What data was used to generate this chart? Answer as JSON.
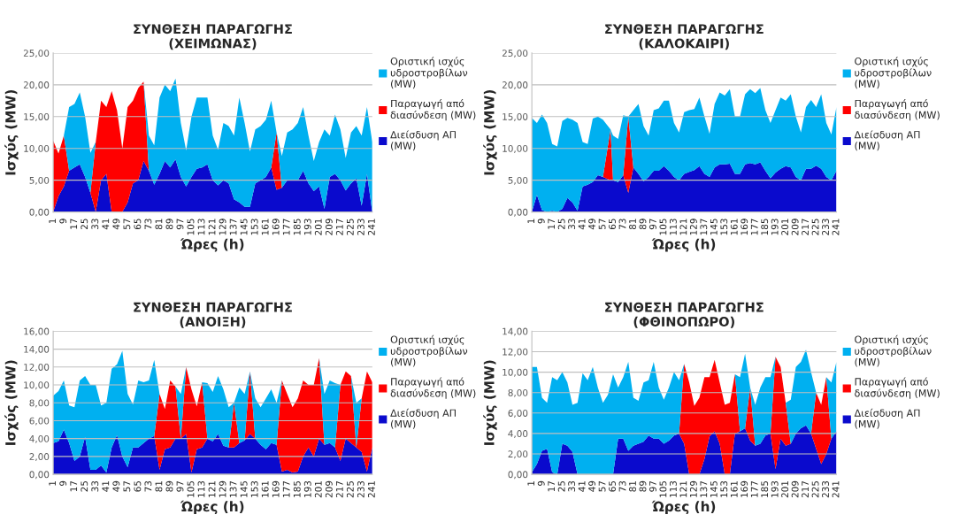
{
  "chart_data": [
    {
      "type": "area",
      "stacked": true,
      "title": "ΣΥΝΘΕΣΗ ΠΑΡΑΓΩΓΗΣ\n(ΧΕΙΜΩΝΑΣ)",
      "xlabel": "Ώρες (h)",
      "ylabel": "Ισχύς (MW)",
      "legend": "right",
      "grid": "y",
      "x": [
        1,
        5,
        9,
        13,
        17,
        21,
        25,
        29,
        33,
        37,
        41,
        45,
        49,
        53,
        57,
        61,
        65,
        69,
        73,
        77,
        81,
        85,
        89,
        93,
        97,
        101,
        105,
        109,
        113,
        117,
        121,
        125,
        129,
        133,
        137,
        141,
        145,
        149,
        153,
        157,
        161,
        165,
        169,
        173,
        177,
        181,
        185,
        189,
        193,
        197,
        201,
        205,
        209,
        213,
        217,
        221,
        225,
        229,
        233,
        237,
        241
      ],
      "xlim": [
        1,
        241
      ],
      "xticks": [
        1,
        9,
        17,
        25,
        33,
        41,
        49,
        57,
        65,
        73,
        81,
        89,
        97,
        105,
        113,
        121,
        129,
        137,
        145,
        153,
        161,
        169,
        177,
        185,
        193,
        201,
        209,
        217,
        225,
        233,
        241
      ],
      "ylim": [
        0,
        25
      ],
      "yticks": [
        {
          "value": 0,
          "label": "0,00"
        },
        {
          "value": 5,
          "label": "5,00"
        },
        {
          "value": 10,
          "label": "10,00"
        },
        {
          "value": 15,
          "label": "15,00"
        },
        {
          "value": 20,
          "label": "20,00"
        },
        {
          "value": 25,
          "label": "25,00"
        }
      ],
      "series": [
        {
          "name": "Διείσδυση ΑΠ\n(MW)",
          "color": "#0a0acd",
          "values": [
            0,
            2.5,
            4,
            6.5,
            7,
            7.5,
            5.5,
            3,
            0,
            5,
            6,
            0,
            0,
            0,
            1.5,
            4.5,
            5,
            8,
            6.5,
            4.3,
            6,
            8,
            7,
            8.3,
            5.5,
            4,
            5.5,
            6.8,
            7,
            7.5,
            5,
            4.2,
            5,
            4.5,
            2,
            1.5,
            0.8,
            0.8,
            4.5,
            5,
            5.5,
            7,
            3.5,
            3.8,
            5,
            5,
            5,
            6.5,
            4.5,
            3.3,
            4,
            0.5,
            5.5,
            6,
            5,
            3.4,
            4.5,
            5.3,
            1,
            6,
            0
          ]
        },
        {
          "name": "Παραγωγή από\nδιασύνδεση (MW)",
          "color": "#ff0000",
          "values": [
            11.2,
            6.7,
            8,
            0,
            0,
            0,
            0,
            0,
            11,
            12.5,
            10.5,
            19,
            16,
            10,
            15,
            13,
            14.5,
            12.5,
            0,
            0,
            0,
            0,
            0,
            0,
            0,
            0,
            0,
            0,
            0,
            0,
            0,
            0,
            0,
            0,
            0,
            0,
            0,
            0,
            0,
            0,
            0,
            0,
            9,
            0,
            0,
            0,
            0,
            0,
            0,
            0,
            0,
            0,
            0,
            0,
            0,
            0,
            0,
            0,
            0,
            0,
            0
          ]
        },
        {
          "name": "Οριστική ισχύς\nυδροστροβίλων\n(MW)",
          "color": "#00b0f0",
          "values": [
            0,
            0,
            0,
            10,
            10,
            11.3,
            9.5,
            6.3,
            0,
            0,
            0,
            0,
            0,
            0,
            0,
            0,
            0,
            0,
            5.5,
            6.2,
            12,
            12,
            12,
            12.7,
            8.5,
            5.7,
            9.5,
            11.2,
            11,
            10.5,
            7,
            5.6,
            9,
            9,
            10,
            16.5,
            13.2,
            8.7,
            8.5,
            8.5,
            9,
            10.5,
            0,
            5,
            7.5,
            8,
            9,
            10,
            7.5,
            4.7,
            7,
            12.5,
            6.5,
            9.3,
            8,
            5.1,
            8,
            8.2,
            11,
            10.5,
            11
          ]
        }
      ]
    },
    {
      "type": "area",
      "stacked": true,
      "title": "ΣΥΝΘΕΣΗ ΠΑΡΑΓΩΓΗΣ\n(ΚΑΛΟΚΑΙΡΙ)",
      "xlabel": "Ώρες (h)",
      "ylabel": "Ισχύς (MW)",
      "legend": "right",
      "grid": "y",
      "x": [
        1,
        5,
        9,
        13,
        17,
        21,
        25,
        29,
        33,
        37,
        41,
        45,
        49,
        53,
        57,
        63,
        65,
        69,
        73,
        77,
        81,
        85,
        89,
        93,
        97,
        101,
        105,
        109,
        113,
        117,
        121,
        125,
        129,
        133,
        137,
        141,
        145,
        149,
        153,
        157,
        161,
        165,
        169,
        173,
        177,
        181,
        185,
        189,
        193,
        197,
        201,
        205,
        209,
        213,
        217,
        221,
        225,
        229,
        233,
        237,
        241
      ],
      "xlim": [
        1,
        241
      ],
      "xticks": [
        1,
        9,
        17,
        25,
        33,
        41,
        49,
        57,
        65,
        73,
        81,
        89,
        97,
        105,
        113,
        121,
        129,
        137,
        145,
        153,
        161,
        169,
        177,
        185,
        193,
        201,
        209,
        217,
        225,
        233,
        241
      ],
      "ylim": [
        0,
        25
      ],
      "yticks": [
        {
          "value": 0,
          "label": "0,00"
        },
        {
          "value": 5,
          "label": "5,00"
        },
        {
          "value": 10,
          "label": "10,00"
        },
        {
          "value": 15,
          "label": "15,00"
        },
        {
          "value": 20,
          "label": "20,00"
        },
        {
          "value": 25,
          "label": "25,00"
        }
      ],
      "series": [
        {
          "name": "Διείσδυση ΑΠ\n(MW)",
          "color": "#0a0acd",
          "values": [
            0,
            2.7,
            0.3,
            0,
            0.2,
            0,
            0.5,
            2.2,
            1.5,
            0.2,
            4,
            4.3,
            4.7,
            5.8,
            5.5,
            5,
            5,
            4.7,
            5.8,
            3,
            7,
            6,
            4.8,
            5.5,
            6.5,
            6.5,
            7.2,
            6.5,
            5.5,
            5,
            6,
            6.3,
            6.6,
            7.2,
            6,
            5.5,
            7,
            7.5,
            7.5,
            7.6,
            6,
            6,
            7.5,
            7.7,
            7.5,
            7.8,
            6.5,
            5.3,
            6.2,
            6.8,
            7.2,
            7,
            5.5,
            5,
            6.8,
            6.8,
            7.3,
            6.8,
            5.5,
            5,
            6.5
          ]
        },
        {
          "name": "Παραγωγή από\nδιασύνδεση (MW)",
          "color": "#ff0000",
          "values": [
            0,
            0,
            0,
            0,
            0,
            0,
            0,
            0,
            0,
            0,
            0,
            0,
            0,
            0,
            0,
            8,
            0,
            0,
            0,
            12,
            0,
            0,
            0,
            0,
            0,
            0,
            0,
            0,
            0,
            0,
            0,
            0,
            0,
            0,
            0,
            0,
            0,
            0,
            0,
            0,
            0,
            0,
            0,
            0,
            0,
            0,
            0,
            0,
            0,
            0,
            0,
            0,
            0,
            0,
            0,
            0,
            0,
            0,
            0,
            0,
            0
          ]
        },
        {
          "name": "Οριστική ισχύς\nυδροστροβίλων\n(MW)",
          "color": "#00b0f0",
          "values": [
            14.8,
            11.3,
            15,
            14,
            10.5,
            10.3,
            13.8,
            12.6,
            13,
            13.8,
            7,
            6.4,
            10,
            9.2,
            9,
            0,
            7,
            6.8,
            9.4,
            0,
            9,
            11,
            8.7,
            6.5,
            9.5,
            9.8,
            10.3,
            11,
            8.5,
            7.5,
            9.7,
            9.7,
            9.6,
            10.8,
            9,
            6.8,
            10,
            11.3,
            10.8,
            11.7,
            9,
            9,
            11,
            11.6,
            11.2,
            11.7,
            9.5,
            8.7,
            9.8,
            11.2,
            10.3,
            11.5,
            9.5,
            7.5,
            9.7,
            10.8,
            9.2,
            11.7,
            8.5,
            7.2,
            10
          ]
        }
      ]
    },
    {
      "type": "area",
      "stacked": true,
      "title": "ΣΥΝΘΕΣΗ ΠΑΡΑΓΩΓΗΣ\n(ΑΝΟΙΞΗ)",
      "xlabel": "Ώρες (h)",
      "ylabel": "Ισχύς (MW)",
      "legend": "right",
      "grid": "y",
      "x": [
        1,
        5,
        9,
        13,
        17,
        21,
        25,
        29,
        33,
        37,
        41,
        45,
        49,
        53,
        57,
        61,
        65,
        69,
        73,
        77,
        81,
        85,
        89,
        93,
        97,
        101,
        105,
        109,
        113,
        117,
        121,
        125,
        129,
        133,
        137,
        141,
        145,
        149,
        153,
        157,
        161,
        165,
        169,
        173,
        177,
        181,
        185,
        189,
        193,
        197,
        201,
        205,
        209,
        213,
        217,
        221,
        225,
        229,
        233,
        237,
        241
      ],
      "xlim": [
        1,
        241
      ],
      "xticks": [
        1,
        9,
        17,
        25,
        33,
        41,
        49,
        57,
        65,
        73,
        81,
        89,
        97,
        105,
        113,
        121,
        129,
        137,
        145,
        153,
        161,
        169,
        177,
        185,
        193,
        201,
        209,
        217,
        225,
        233,
        241
      ],
      "ylim": [
        0,
        16
      ],
      "yticks": [
        {
          "value": 0,
          "label": "0,00"
        },
        {
          "value": 2,
          "label": "2,00"
        },
        {
          "value": 4,
          "label": "4,00"
        },
        {
          "value": 6,
          "label": "6,00"
        },
        {
          "value": 8,
          "label": "8,00"
        },
        {
          "value": 10,
          "label": "10,00"
        },
        {
          "value": 12,
          "label": "12,00"
        },
        {
          "value": 14,
          "label": "14,00"
        },
        {
          "value": 16,
          "label": "16,00"
        }
      ],
      "series": [
        {
          "name": "Διείσδυση ΑΠ\n(MW)",
          "color": "#0a0acd",
          "values": [
            3.5,
            3.7,
            5,
            3.5,
            1.5,
            2,
            4.2,
            0.5,
            0.5,
            1,
            0.2,
            3,
            4.4,
            2,
            0.8,
            3,
            3,
            3.5,
            4,
            4.3,
            0.5,
            2.8,
            3,
            4,
            4,
            4.5,
            0.2,
            2.8,
            3,
            4,
            3.7,
            4.5,
            3.2,
            3,
            3,
            3.5,
            3.8,
            4.5,
            4,
            3.3,
            2.8,
            3.5,
            3.3,
            0.3,
            0.5,
            0.2,
            0.3,
            2,
            3,
            2,
            4,
            3.3,
            3.5,
            3,
            1.5,
            4,
            3.5,
            3,
            2.5,
            0.3,
            3
          ]
        },
        {
          "name": "Παραγωγή από\nδιασύνδεση (MW)",
          "color": "#ff0000",
          "values": [
            0,
            0,
            0,
            0,
            0,
            0,
            0,
            0,
            0,
            0,
            0,
            0,
            0,
            0,
            0,
            0,
            0,
            0,
            0,
            0,
            8.5,
            4.5,
            7.5,
            5.8,
            0,
            7.5,
            9.3,
            4.8,
            7.3,
            0,
            0,
            0,
            0,
            0,
            5,
            0,
            0,
            7,
            0,
            0,
            0,
            0,
            0,
            10.2,
            8.5,
            7.3,
            8.2,
            8.5,
            7,
            8,
            9,
            0,
            0,
            0,
            8.5,
            7.5,
            7.5,
            0,
            6,
            11.2,
            7.3
          ]
        },
        {
          "name": "Οριστική ισχύς\nυδροστροβίλων\n(MW)",
          "color": "#00b0f0",
          "values": [
            5.3,
            5.6,
            5.5,
            4.2,
            6,
            8.5,
            6.8,
            9.5,
            9.5,
            6.7,
            7.8,
            8.8,
            7.9,
            11.8,
            8.2,
            4.8,
            7.5,
            6.8,
            6.5,
            8.5,
            0,
            0,
            0,
            0,
            5,
            0,
            0,
            0,
            0,
            6.2,
            5.5,
            6.5,
            6.3,
            4.5,
            0,
            6.2,
            5.2,
            0,
            4.5,
            4.2,
            5.7,
            6,
            4.7,
            0,
            0,
            0,
            0,
            0,
            0,
            0,
            0,
            5.7,
            7,
            7.2,
            0,
            0,
            0,
            5,
            0,
            0,
            0
          ]
        }
      ]
    },
    {
      "type": "area",
      "stacked": true,
      "title": "ΣΥΝΘΕΣΗ ΠΑΡΑΓΩΓΗΣ\n(ΦΘΙΝΟΠΩΡΟ)",
      "xlabel": "Ώρες (h)",
      "ylabel": "Ισχύς (MW)",
      "legend": "right",
      "grid": "y",
      "x": [
        1,
        5,
        9,
        13,
        17,
        21,
        25,
        29,
        33,
        37,
        41,
        45,
        49,
        53,
        57,
        61,
        65,
        69,
        73,
        77,
        81,
        85,
        89,
        93,
        97,
        101,
        105,
        109,
        113,
        117,
        121,
        125,
        129,
        133,
        137,
        141,
        145,
        149,
        153,
        157,
        161,
        165,
        169,
        173,
        177,
        181,
        185,
        189,
        193,
        197,
        201,
        205,
        209,
        213,
        217,
        221,
        225,
        229,
        233,
        237,
        241
      ],
      "xlim": [
        1,
        241
      ],
      "xticks": [
        1,
        9,
        17,
        25,
        33,
        41,
        49,
        57,
        65,
        73,
        81,
        89,
        97,
        105,
        113,
        121,
        129,
        137,
        145,
        153,
        161,
        169,
        177,
        185,
        193,
        201,
        209,
        217,
        225,
        233,
        241
      ],
      "ylim": [
        0,
        14
      ],
      "yticks": [
        {
          "value": 0,
          "label": "0,00"
        },
        {
          "value": 2,
          "label": "2,00"
        },
        {
          "value": 4,
          "label": "4,00"
        },
        {
          "value": 6,
          "label": "6,00"
        },
        {
          "value": 8,
          "label": "8,00"
        },
        {
          "value": 10,
          "label": "10,00"
        },
        {
          "value": 12,
          "label": "12,00"
        },
        {
          "value": 14,
          "label": "14,00"
        }
      ],
      "series": [
        {
          "name": "Διείσδυση ΑΠ\n(MW)",
          "color": "#0a0acd",
          "values": [
            0.2,
            1,
            2.3,
            2.5,
            0.2,
            0,
            3,
            2.8,
            2.2,
            0,
            0,
            0,
            0,
            0,
            0,
            0,
            0,
            3.5,
            3.5,
            2.3,
            2.8,
            3,
            3.2,
            3.8,
            3.5,
            3.5,
            3,
            3.3,
            3.8,
            4,
            3,
            0,
            0,
            0,
            1.5,
            3.7,
            4.2,
            3,
            0,
            0,
            4,
            4.2,
            4.5,
            3.3,
            2.8,
            3,
            3.8,
            4,
            0.5,
            3.5,
            2.8,
            3,
            4,
            4.5,
            4.8,
            4,
            2.5,
            1,
            2,
            3.5,
            4.2
          ]
        },
        {
          "name": "Παραγωγή από\nδιασύνδεση (MW)",
          "color": "#ff0000",
          "values": [
            0,
            0,
            0,
            0,
            0,
            0,
            0,
            0,
            0,
            0,
            0,
            0,
            0,
            0,
            0,
            0,
            0,
            0,
            0,
            0,
            0,
            0,
            0,
            0,
            0,
            0,
            0,
            0,
            0,
            0,
            7.8,
            9,
            6.7,
            7.5,
            8,
            5.8,
            7,
            6,
            6.8,
            7,
            5.8,
            0,
            0,
            5.2,
            0,
            0,
            0,
            0,
            11,
            7,
            4.2,
            0,
            0,
            0,
            0,
            0,
            5.5,
            5.8,
            7.5,
            0,
            0
          ]
        },
        {
          "name": "Οριστική ισχύς\nυδροστροβίλων\n(MW)",
          "color": "#00b0f0",
          "values": [
            10.3,
            9.5,
            5.2,
            4.5,
            9.3,
            9.2,
            7,
            6.2,
            4.6,
            7,
            9.9,
            9.2,
            10.5,
            8.5,
            7,
            7.8,
            9.8,
            5,
            6,
            8.7,
            4.7,
            4.2,
            5.8,
            5.4,
            7.5,
            5,
            4.3,
            5.2,
            6.2,
            5.2,
            0,
            0,
            0,
            0,
            0,
            0,
            0,
            0,
            0,
            0,
            0,
            5.3,
            7.3,
            0,
            4,
            5.5,
            5.7,
            5.5,
            0,
            0,
            0,
            4.3,
            6.5,
            6.5,
            7.4,
            6,
            0,
            0,
            0,
            5.5,
            6.8
          ]
        }
      ]
    }
  ]
}
